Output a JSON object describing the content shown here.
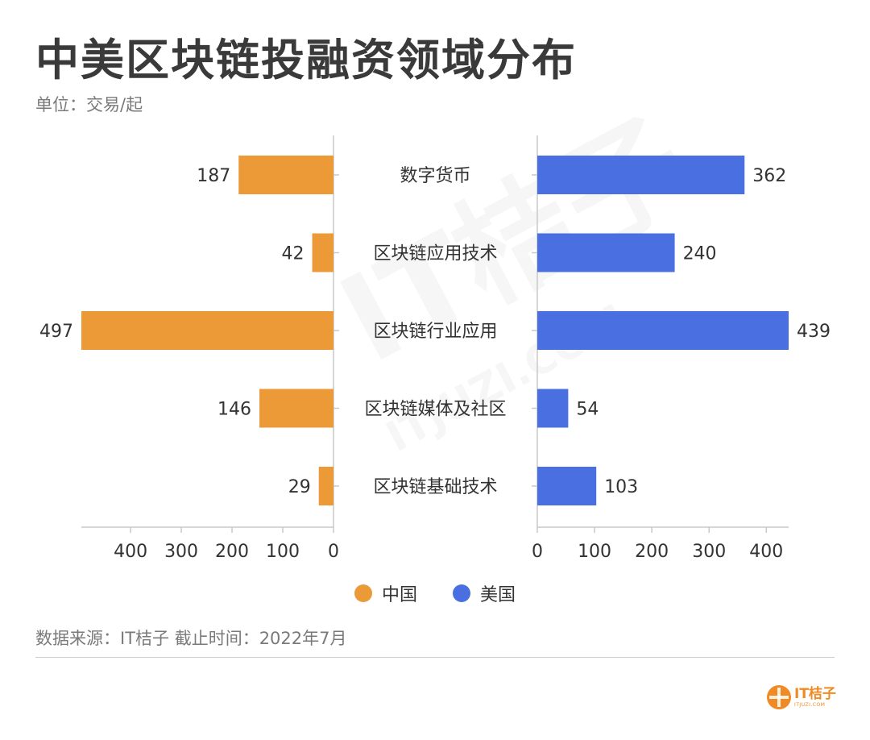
{
  "header": {
    "title": "中美区块链投融资领域分布",
    "subtitle": "单位：交易/起"
  },
  "footer": {
    "source": "数据来源：IT桔子 截止时间：2022年7月"
  },
  "logo": {
    "text": "IT桔子",
    "sub": "ITJUZI.COM"
  },
  "watermark": {
    "text": "IT桔子",
    "sub": "ITJUZI.COM"
  },
  "colors": {
    "china": "#ec9a37",
    "usa": "#4a6fe0",
    "axis": "#c9c9c9"
  },
  "chart_data": {
    "type": "bar",
    "orientation": "horizontal-butterfly",
    "categories": [
      "数字货币",
      "区块链应用技术",
      "区块链行业应用",
      "区块链媒体及社区",
      "区块链基础技术"
    ],
    "series": [
      {
        "name": "中国",
        "values": [
          187,
          42,
          497,
          146,
          29
        ]
      },
      {
        "name": "美国",
        "values": [
          362,
          240,
          439,
          54,
          103
        ]
      }
    ],
    "left_axis": {
      "ticks": [
        0,
        100,
        200,
        300,
        400
      ],
      "range": [
        0,
        497
      ]
    },
    "right_axis": {
      "ticks": [
        0,
        100,
        200,
        300,
        400
      ],
      "range": [
        0,
        439
      ]
    },
    "legend": {
      "placement": "bottom-center"
    },
    "grid": false
  }
}
